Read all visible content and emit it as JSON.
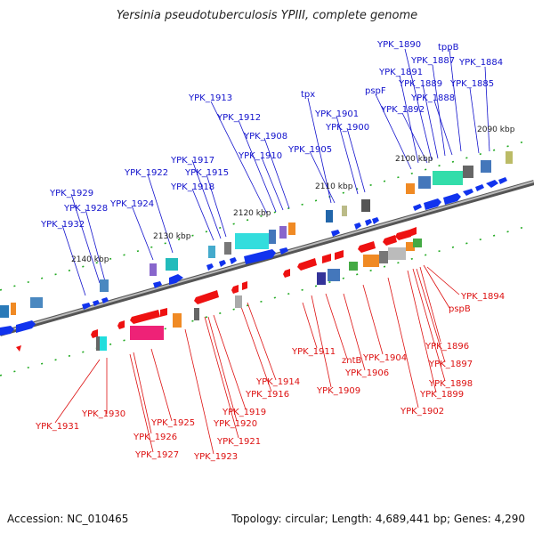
{
  "title": "Yersinia pseudotuberculosis YPIII, complete genome",
  "footer": {
    "accession": "Accession: NC_010465",
    "summary": "Topology: circular; Length: 4,689,441 bp; Genes: 4,290"
  },
  "colors": {
    "forward": "#1111cc",
    "reverse": "#dd1111",
    "backbone": "#888888",
    "tick": "#22aa22"
  },
  "ticks": [
    "2090 kbp",
    "2100 kbp",
    "2110 kbp",
    "2120 kbp",
    "2130 kbp",
    "2140 kbp"
  ],
  "top_labels": [
    "YPK_1890",
    "tppB",
    "YPK_1887",
    "YPK_1884",
    "YPK_1891",
    "YPK_1889",
    "YPK_1885",
    "pspF",
    "YPK_1888",
    "tpx",
    "YPK_1892",
    "YPK_1913",
    "YPK_1901",
    "YPK_1912",
    "YPK_1900",
    "YPK_1908",
    "YPK_1905",
    "YPK_1910",
    "YPK_1917",
    "YPK_1922",
    "YPK_1915",
    "YPK_1918",
    "YPK_1929",
    "YPK_1924",
    "YPK_1928",
    "YPK_1932"
  ],
  "bottom_labels": [
    "YPK_1894",
    "pspB",
    "YPK_1896",
    "YPK_1897",
    "YPK_1898",
    "YPK_1899",
    "YPK_1902",
    "YPK_1911",
    "zntB",
    "YPK_1904",
    "YPK_1906",
    "YPK_1909",
    "YPK_1914",
    "YPK_1916",
    "YPK_1919",
    "YPK_1920",
    "YPK_1921",
    "YPK_1923",
    "YPK_1925",
    "YPK_1926",
    "YPK_1927",
    "YPK_1930",
    "YPK_1931"
  ]
}
